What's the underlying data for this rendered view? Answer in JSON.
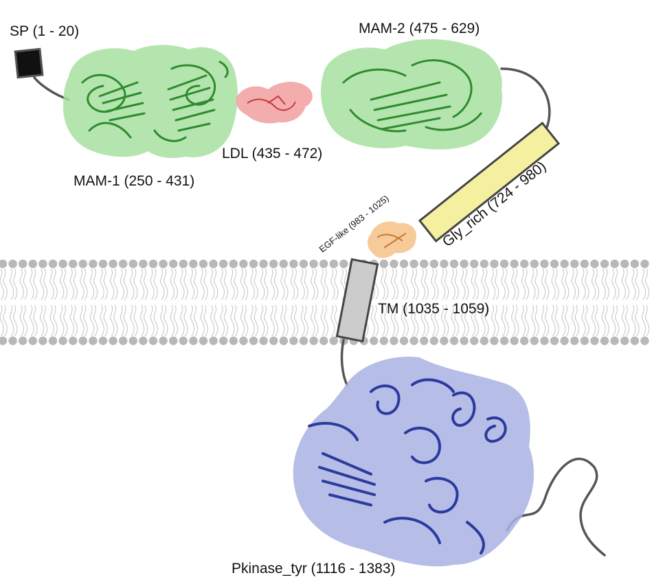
{
  "labels": {
    "sp": "SP (1 - 20)",
    "mam1": "MAM-1 (250 - 431)",
    "ldl": "LDL (435 - 472)",
    "mam2": "MAM-2 (475 - 629)",
    "gly_rich": "Gly_rich (724 - 980)",
    "egf_like": "EGF-like (983 - 1025)",
    "tm": "TM (1035 - 1059)",
    "pkinase": "Pkinase_tyr (1116 - 1383)"
  },
  "colors": {
    "mam_surface": "#a8e0a0",
    "mam_ribbon": "#2e8b2e",
    "ldl_surface": "#f2a4a4",
    "ldl_ribbon": "#c83a3a",
    "egf_surface": "#f6c48e",
    "gly_box": "#f5f0a0",
    "tm_box": "#cccccc",
    "kinase_surface": "#a9b2e2",
    "kinase_ribbon": "#2b3a9e",
    "membrane_head": "#b8b8b8",
    "linker": "#555555"
  }
}
